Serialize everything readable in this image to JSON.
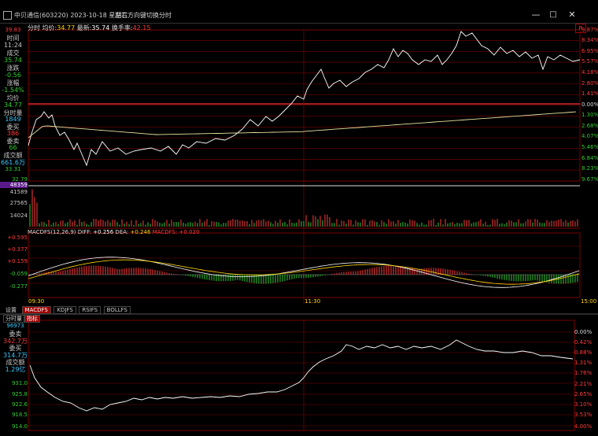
{
  "window": {
    "title": "中贝通信(603220) 2023-10-18 星期三",
    "hint": "左右方向键切换分时",
    "btn_min": "—",
    "btn_max": "□",
    "btn_close": "✕",
    "right_mark": "R"
  },
  "header": {
    "label_fenshi": "分时",
    "label_junjia": "均价:",
    "junjia_value": "34.77",
    "label_zuixin": "最新:",
    "zuixin_value": "35.74",
    "label_huanshou": "换手率:",
    "huanshou_value": "42.15"
  },
  "left_panel": {
    "price_top": "39.83",
    "time_label": "时间",
    "time_value": "11:24",
    "deal_label": "成交",
    "deal_value": "35.74",
    "change_label": "涨跌",
    "change_value": "-0.56",
    "pct_label": "涨幅",
    "pct_value": "-1.54%",
    "avg_label": "均价",
    "avg_value": "34.77",
    "vol_label": "分时量",
    "vol_value": "1849",
    "buy_label": "委买",
    "buy_value": "386",
    "sell_label": "委卖",
    "sell_value": "66",
    "amount_label": "成交额",
    "amount_value": "661.6万",
    "price_bottom": "33.31"
  },
  "price_axis_right": [
    "9.87%",
    "8.34%",
    "6.95%",
    "5.57%",
    "4.18%",
    "2.80%",
    "1.41%",
    "0.00%",
    "1.30%",
    "2.68%",
    "4.07%",
    "5.46%",
    "6.84%",
    "8.23%",
    "9.67%"
  ],
  "volume_axis_left": [
    "32.79",
    "48359",
    "41589",
    "27565",
    "14024"
  ],
  "macd": {
    "title": "MACDFS(12,26,9) DIFF: ",
    "diff": "+0.256",
    "dea_label": " DEA: ",
    "dea": "+0.246",
    "macd_label": " MACDFS: ",
    "macd_val": "+0.020",
    "axis": [
      "+0.595",
      "+0.377",
      "+0.159",
      "-0.059",
      "-0.277"
    ]
  },
  "time_axis": [
    "09:30",
    "11:30",
    "15:00"
  ],
  "tabs": {
    "settings": "设置",
    "t1": "MACDFS",
    "t2": "KDJFS",
    "t3": "RSIFS",
    "t4": "BOLLFS"
  },
  "sub_tabs": {
    "a": "分时量",
    "b": "指标"
  },
  "bottom": {
    "v1": "96973",
    "sell_label": "委卖",
    "sell_value": "342.7万",
    "buy_label": "委买",
    "buy_value": "314.7万",
    "amt_label": "成交额",
    "amt_value": "1.29亿",
    "left_axis": [
      "931.0",
      "925.8",
      "922.6",
      "918.5",
      "914.0"
    ],
    "right_axis": [
      "0.00%",
      "0.42%",
      "0.88%",
      "1.31%",
      "1.76%",
      "2.21%",
      "2.65%",
      "3.10%",
      "3.53%",
      "4.00%"
    ]
  },
  "colors": {
    "up": "#ff3b3b",
    "down": "#33cc33",
    "grid": "#7a0000",
    "price": "#ffffff",
    "avg": "#e8e0a0",
    "accent": "#a00000"
  }
}
